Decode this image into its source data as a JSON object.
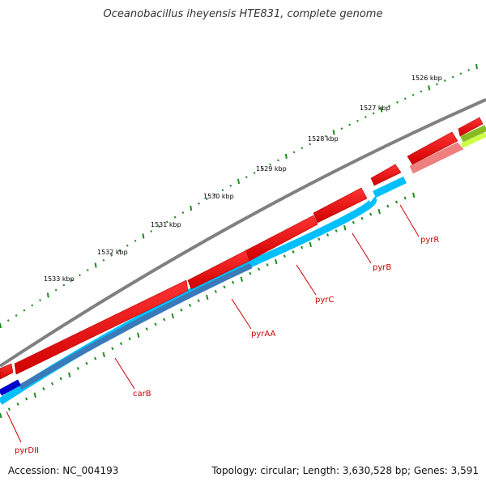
{
  "title": "Oceanobacillus iheyensis HTE831, complete genome",
  "footer": {
    "accession": "Accession: NC_004193",
    "summary": "Topology: circular; Length: 3,630,528 bp; Genes: 3,591"
  },
  "colors": {
    "backbone": "#808080",
    "gene_red": "#ee1111",
    "gene_pink": "#f08080",
    "track_cyan": "#00bfff",
    "track_steel": "#3a7ab8",
    "track_navy": "#0000cc",
    "track_olive": "#88bb22",
    "track_green": "#ccff44",
    "tick_green": "#228b22",
    "label_red": "#cc0000"
  },
  "position_labels": [
    "1526 kbp",
    "1527 kbp",
    "1528 kbp",
    "1529 kbp",
    "1530 kbp",
    "1531 kbp",
    "1532 kbp",
    "1533 kbp"
  ],
  "gene_labels": [
    "pyrR",
    "pyrB",
    "pyrC",
    "pyrAA",
    "carB",
    "pyrDII"
  ]
}
